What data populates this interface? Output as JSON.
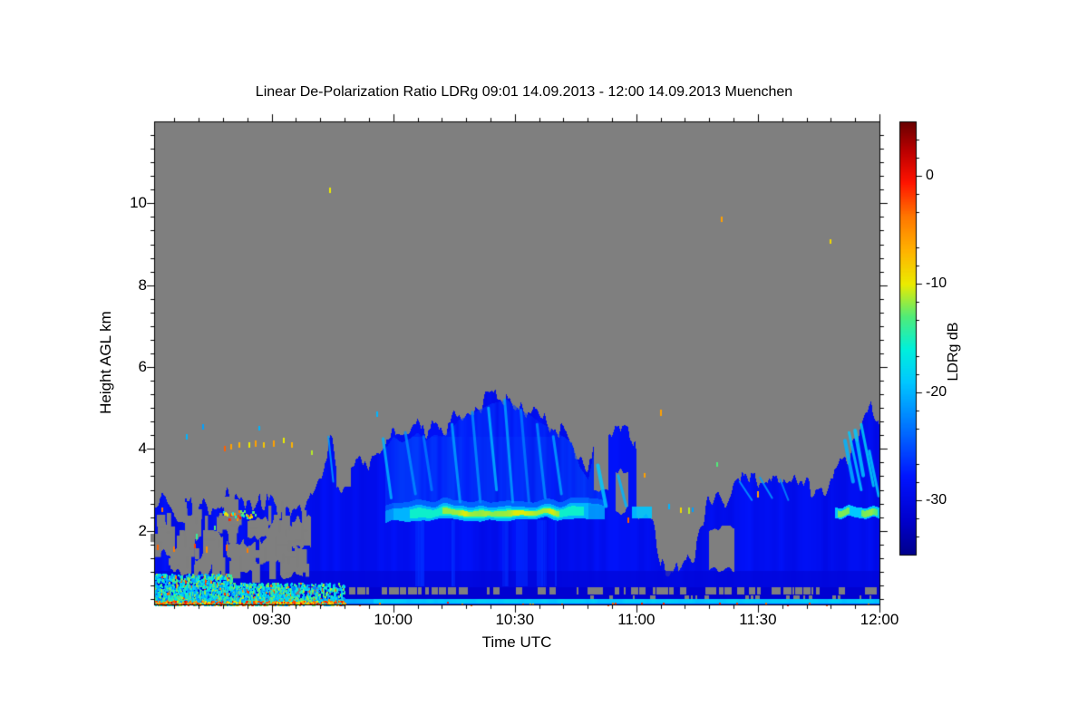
{
  "figure": {
    "background": "#ffffff"
  },
  "chart_data": {
    "type": "heatmap",
    "title": "Linear De-Polarization Ratio LDRg   09:01 14.09.2013 - 12:00 14.09.2013 Muenchen",
    "xlabel": "Time UTC",
    "ylabel": "Height AGL km",
    "x_start_utc": "09:01",
    "x_end_utc": "12:00",
    "x_span_minutes": [
      1,
      180
    ],
    "x_ticks": [
      {
        "label": "09:30",
        "minute": 30
      },
      {
        "label": "10:00",
        "minute": 60
      },
      {
        "label": "10:30",
        "minute": 90
      },
      {
        "label": "11:00",
        "minute": 120
      },
      {
        "label": "11:30",
        "minute": 150
      },
      {
        "label": "12:00",
        "minute": 180
      }
    ],
    "x_minor_step_min": 6,
    "y_range_km": [
      0.2,
      12.0
    ],
    "y_ticks": [
      {
        "label": "2",
        "km": 2
      },
      {
        "label": "4",
        "km": 4
      },
      {
        "label": "6",
        "km": 6
      },
      {
        "label": "8",
        "km": 8
      },
      {
        "label": "10",
        "km": 10
      }
    ],
    "y_minor_step_km": 0.3333,
    "no_data_color": "#7f7f7f",
    "colorbar": {
      "label": "LDRg dB",
      "ticks": [
        {
          "label": "0",
          "db": 0
        },
        {
          "label": "-10",
          "db": -10
        },
        {
          "label": "-20",
          "db": -20
        },
        {
          "label": "-30",
          "db": -30
        }
      ],
      "range_db": [
        -35,
        5
      ],
      "minor_step_db": 1.6667,
      "stops": [
        [
          0.0,
          "#00008b"
        ],
        [
          0.08,
          "#0000cd"
        ],
        [
          0.18,
          "#0014ff"
        ],
        [
          0.3,
          "#0078ff"
        ],
        [
          0.4,
          "#00c8ff"
        ],
        [
          0.475,
          "#00f0dc"
        ],
        [
          0.55,
          "#50eb78"
        ],
        [
          0.625,
          "#ebeb00"
        ],
        [
          0.7,
          "#ffb400"
        ],
        [
          0.78,
          "#ff7800"
        ],
        [
          0.86,
          "#ff1400"
        ],
        [
          0.93,
          "#be0000"
        ],
        [
          1.0,
          "#690000"
        ]
      ]
    },
    "echo_value_db": -29,
    "cloud_top_profile_min_km": [
      [
        1,
        2.7
      ],
      [
        3,
        2.85
      ],
      [
        5,
        2.5
      ],
      [
        7,
        2.3
      ],
      [
        9,
        2.6
      ],
      [
        11,
        2.45
      ],
      [
        13,
        2.8
      ],
      [
        15,
        2.6
      ],
      [
        17,
        2.65
      ],
      [
        19,
        2.85
      ],
      [
        21,
        2.7
      ],
      [
        23,
        2.75
      ],
      [
        25,
        2.6
      ],
      [
        27,
        2.8
      ],
      [
        29,
        2.65
      ],
      [
        31,
        2.5
      ],
      [
        33,
        2.6
      ],
      [
        35,
        2.55
      ],
      [
        37,
        2.6
      ],
      [
        39,
        2.75
      ],
      [
        41,
        3.05
      ],
      [
        43,
        3.6
      ],
      [
        44.5,
        4.35
      ],
      [
        46,
        3.75
      ],
      [
        48,
        3.5
      ],
      [
        50,
        3.65
      ],
      [
        52,
        3.85
      ],
      [
        54,
        3.7
      ],
      [
        56,
        3.9
      ],
      [
        58,
        4.15
      ],
      [
        60,
        4.45
      ],
      [
        62,
        4.3
      ],
      [
        64,
        4.4
      ],
      [
        66,
        4.55
      ],
      [
        68,
        4.35
      ],
      [
        70,
        4.5
      ],
      [
        72,
        4.45
      ],
      [
        74,
        4.6
      ],
      [
        76,
        4.85
      ],
      [
        78,
        4.95
      ],
      [
        80,
        5.05
      ],
      [
        82,
        5.15
      ],
      [
        84,
        5.25
      ],
      [
        86,
        5.3
      ],
      [
        88,
        5.35
      ],
      [
        90,
        5.2
      ],
      [
        92,
        5.05
      ],
      [
        94,
        4.95
      ],
      [
        96,
        4.8
      ],
      [
        98,
        4.7
      ],
      [
        100,
        4.55
      ],
      [
        102,
        4.45
      ],
      [
        104,
        4.3
      ],
      [
        106,
        3.7
      ],
      [
        108,
        3.4
      ],
      [
        110,
        4.3
      ],
      [
        112,
        4.55
      ],
      [
        114,
        4.4
      ],
      [
        116,
        4.35
      ],
      [
        118,
        4.5
      ],
      [
        120,
        3.8
      ],
      [
        122,
        3.1
      ],
      [
        124,
        2.4
      ],
      [
        126,
        1.3
      ],
      [
        128,
        1.1
      ],
      [
        130,
        1.05
      ],
      [
        132,
        1.1
      ],
      [
        134,
        1.3
      ],
      [
        136,
        2.1
      ],
      [
        138,
        2.75
      ],
      [
        140,
        2.7
      ],
      [
        142,
        2.5
      ],
      [
        144,
        3.15
      ],
      [
        146,
        3.3
      ],
      [
        148,
        3.35
      ],
      [
        150,
        3.25
      ],
      [
        152,
        3.4
      ],
      [
        154,
        3.35
      ],
      [
        156,
        3.25
      ],
      [
        158,
        3.35
      ],
      [
        160,
        3.25
      ],
      [
        162,
        3.15
      ],
      [
        164,
        2.95
      ],
      [
        166,
        2.9
      ],
      [
        168,
        3.15
      ],
      [
        170,
        3.5
      ],
      [
        172,
        3.8
      ],
      [
        174,
        4.25
      ],
      [
        176,
        4.6
      ],
      [
        178,
        4.9
      ],
      [
        179,
        4.7
      ],
      [
        180,
        4.45
      ]
    ],
    "holes": [
      [
        2,
        6,
        1.45,
        2.2
      ],
      [
        5,
        10,
        1.0,
        1.55
      ],
      [
        8.5,
        12.5,
        1.85,
        2.4
      ],
      [
        13,
        18,
        1.1,
        1.95
      ],
      [
        16.5,
        22,
        2.0,
        2.4
      ],
      [
        21,
        26,
        1.0,
        1.7
      ],
      [
        24,
        29,
        1.8,
        2.25
      ],
      [
        29,
        35,
        1.25,
        2.1
      ],
      [
        32,
        37.5,
        0.9,
        1.45
      ],
      [
        35,
        39.5,
        1.6,
        2.3
      ],
      [
        11,
        15,
        0.95,
        1.35
      ],
      [
        19,
        23,
        1.35,
        1.75
      ],
      [
        27,
        31,
        1.35,
        1.8
      ],
      [
        6,
        9,
        2.3,
        2.6
      ],
      [
        46,
        49.5,
        3.0,
        3.8
      ],
      [
        109.5,
        113,
        2.95,
        4.8
      ],
      [
        115,
        118,
        2.5,
        3.5
      ],
      [
        120,
        125.5,
        2.35,
        4.2
      ],
      [
        138,
        144,
        1.05,
        2.05
      ]
    ],
    "left_patchiness": {
      "t_range": [
        1,
        40
      ],
      "km_range": [
        0.95,
        2.6
      ],
      "blob_count": 70
    },
    "bright_bands": {
      "main": {
        "t_range": [
          58,
          112
        ],
        "center_km": 2.42,
        "half_width_km": 0.17,
        "edge_db": -20,
        "mid_db": -15.5,
        "mid_t_range": [
          64,
          107
        ],
        "core_db": -11,
        "core_t_range": [
          72,
          101
        ]
      },
      "left_speckle": {
        "t_range": [
          18,
          26
        ],
        "km_range": [
          2.3,
          2.52
        ],
        "values_db": [
          -20,
          0
        ]
      },
      "right": {
        "t_range": [
          169,
          180
        ],
        "km_range": [
          2.32,
          2.58
        ],
        "edge_db": -19,
        "cores": [
          {
            "t_range": [
              169.5,
              172.5
            ],
            "db": -12.5
          },
          {
            "t_range": [
              175.5,
              179.5
            ],
            "db": -12.5
          }
        ]
      },
      "cyan_patch": {
        "t_range": [
          119,
          124
        ],
        "km_range": [
          2.3,
          2.58
        ],
        "db": -19
      }
    },
    "streaks": [
      [
        44,
        4.3,
        45.2,
        3.2,
        -21,
        2
      ],
      [
        57.5,
        4.25,
        59.5,
        2.8,
        -20,
        3
      ],
      [
        63,
        4.4,
        65.5,
        2.9,
        -22,
        3
      ],
      [
        67.5,
        4.3,
        69.5,
        3.0,
        -23,
        3
      ],
      [
        74.5,
        4.6,
        76.5,
        2.7,
        -21,
        3
      ],
      [
        79.5,
        4.9,
        81.5,
        2.7,
        -22,
        3
      ],
      [
        83.5,
        5.0,
        85.5,
        3.0,
        -20,
        3
      ],
      [
        87.5,
        5.2,
        89.5,
        2.7,
        -21,
        3
      ],
      [
        91.5,
        4.95,
        93.5,
        2.7,
        -23,
        3
      ],
      [
        95.5,
        4.6,
        97.5,
        2.8,
        -22,
        3
      ],
      [
        99.5,
        4.3,
        101.5,
        2.9,
        -21,
        3
      ],
      [
        110.5,
        3.6,
        112.5,
        2.6,
        -19,
        4
      ],
      [
        115.5,
        3.35,
        117.5,
        2.6,
        -20,
        3
      ],
      [
        145.5,
        3.2,
        148.5,
        2.75,
        -21,
        2
      ],
      [
        150.5,
        3.3,
        153.5,
        2.8,
        -21,
        2
      ],
      [
        155.5,
        3.25,
        157.5,
        2.75,
        -22,
        2
      ],
      [
        171.5,
        4.2,
        173.5,
        3.2,
        -20,
        4
      ],
      [
        174,
        4.45,
        176,
        3.35,
        -19,
        4
      ],
      [
        172.5,
        4.4,
        175.5,
        3.0,
        -19,
        3
      ],
      [
        175.5,
        4.6,
        178.5,
        3.1,
        -18,
        3
      ],
      [
        177.5,
        3.95,
        179.8,
        2.85,
        -19,
        3
      ]
    ],
    "surface": {
      "aerosol": {
        "t_range": [
          1,
          48
        ],
        "heavy_until_min": 35,
        "km_base": 0.24,
        "km_top": 0.95,
        "db_range": [
          -23,
          -11
        ]
      },
      "gray_stripe": {
        "t_range": [
          36,
          180
        ],
        "km_range": [
          0.45,
          0.62
        ]
      },
      "dark_layer": {
        "t_range": [
          40,
          180
        ],
        "km_range": [
          0.3,
          0.62
        ],
        "db": -31.5
      },
      "cyan_line": {
        "km_range": [
          0.22,
          0.33
        ],
        "db_left": -20.5,
        "db_right": -18.8,
        "split_min": 55
      },
      "bottom_speckles": {
        "t_range": [
          1,
          48
        ],
        "km_range": [
          0.2,
          0.3
        ],
        "db_range": [
          -7,
          1
        ]
      }
    },
    "specks": [
      [
        44.5,
        10.32,
        -10
      ],
      [
        141,
        9.6,
        -6
      ],
      [
        168,
        9.05,
        -9
      ],
      [
        18.5,
        4.0,
        -3
      ],
      [
        20,
        4.05,
        -6
      ],
      [
        22,
        4.1,
        -7
      ],
      [
        24.5,
        4.1,
        -10
      ],
      [
        26,
        4.15,
        -6
      ],
      [
        28,
        4.1,
        -8
      ],
      [
        30.5,
        4.15,
        -6
      ],
      [
        33,
        4.2,
        -10
      ],
      [
        35,
        4.1,
        -7
      ],
      [
        9,
        4.3,
        -20
      ],
      [
        13,
        4.55,
        -21
      ],
      [
        27,
        4.5,
        -20
      ],
      [
        56,
        4.85,
        -20
      ],
      [
        40,
        3.9,
        -11
      ],
      [
        2,
        1.6,
        -3
      ],
      [
        6,
        1.55,
        -4
      ],
      [
        11,
        1.62,
        -2
      ],
      [
        14,
        1.55,
        -5
      ],
      [
        19,
        1.6,
        -3
      ],
      [
        3,
        2.5,
        -4
      ],
      [
        11.5,
        1.85,
        -14
      ],
      [
        16,
        2.05,
        -13
      ],
      [
        24,
        1.5,
        -4
      ],
      [
        126,
        4.9,
        -6
      ],
      [
        122,
        3.35,
        -6
      ],
      [
        140,
        3.6,
        -13
      ],
      [
        131,
        2.5,
        -9
      ],
      [
        133,
        2.5,
        -11
      ],
      [
        150,
        2.9,
        -6
      ],
      [
        118,
        2.25,
        -3
      ],
      [
        128,
        2.6,
        -20
      ],
      [
        134,
        2.5,
        -21
      ]
    ],
    "seed": 20130914
  }
}
